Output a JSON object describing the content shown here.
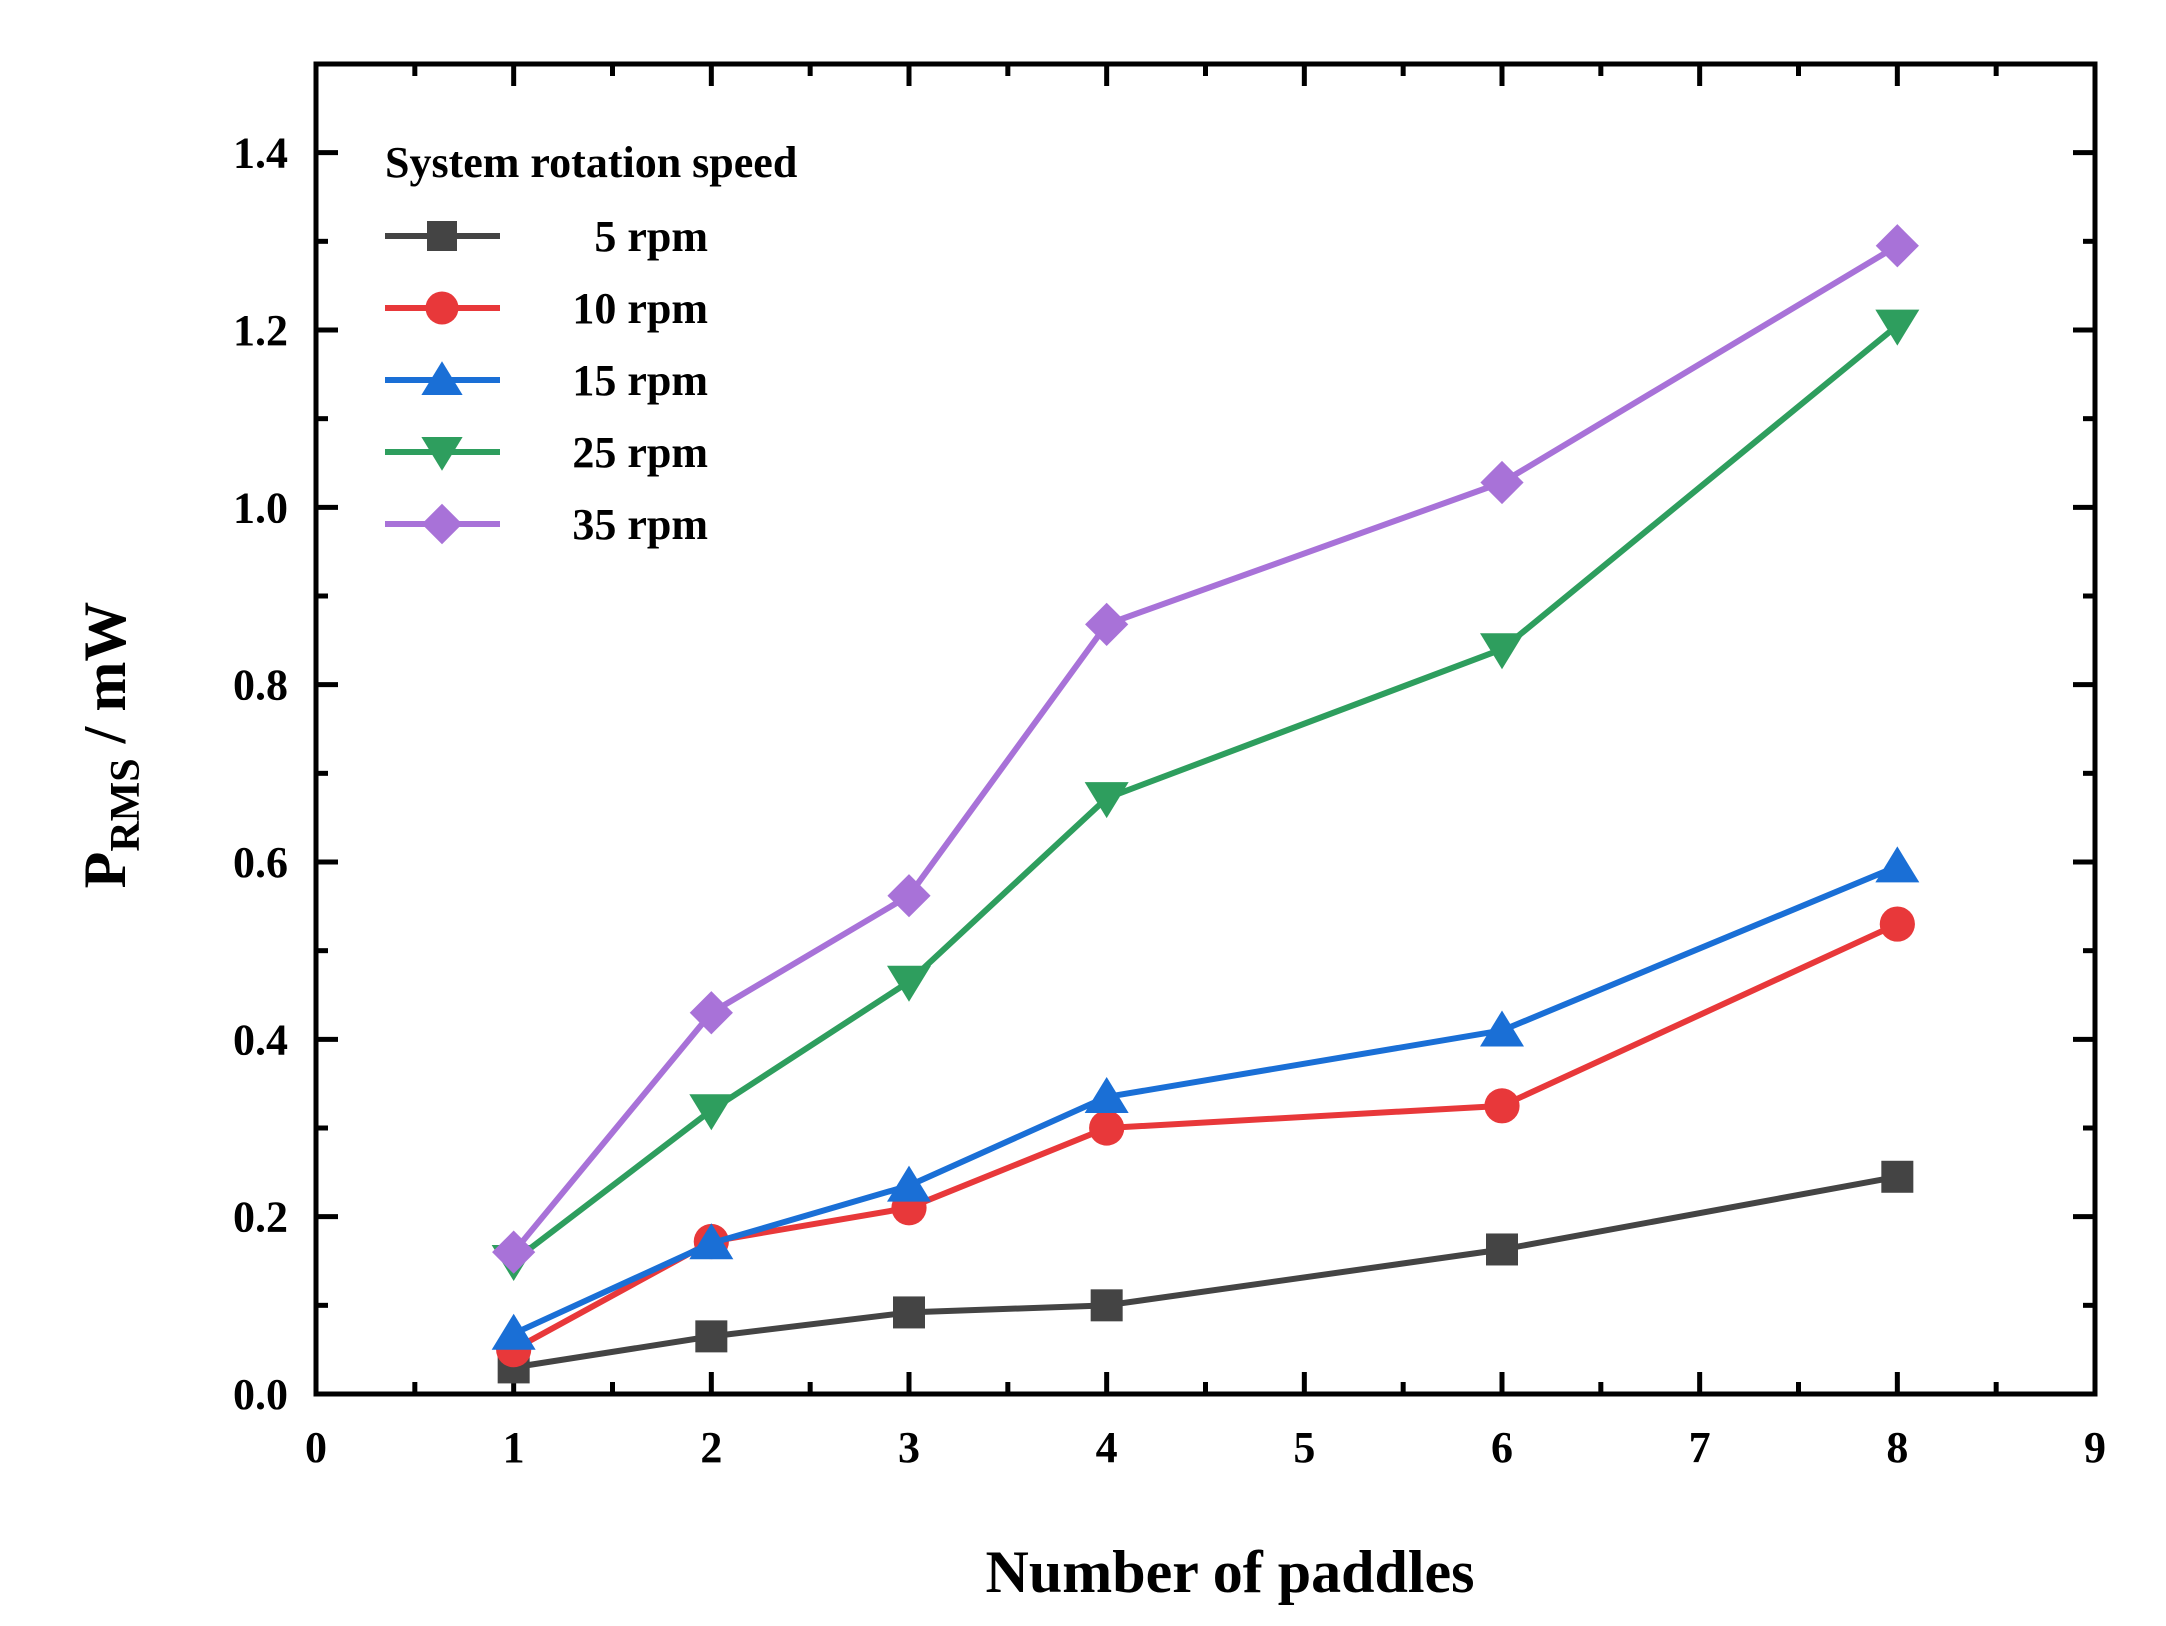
{
  "chart_data": {
    "type": "line",
    "title": "",
    "xlabel": "Number of paddles",
    "ylabel_main": "P",
    "ylabel_sub": "RMS",
    "ylabel_unit": " / mW",
    "xlim": [
      0,
      9
    ],
    "ylim": [
      0,
      1.5
    ],
    "xticks": [
      0,
      1,
      2,
      3,
      4,
      5,
      6,
      7,
      8,
      9
    ],
    "yticks": [
      0.0,
      0.2,
      0.4,
      0.6,
      0.8,
      1.0,
      1.2,
      1.4
    ],
    "xtick_labels": [
      "0",
      "1",
      "2",
      "3",
      "4",
      "5",
      "6",
      "7",
      "8",
      "9"
    ],
    "ytick_labels": [
      "0.0",
      "0.2",
      "0.4",
      "0.6",
      "0.8",
      "1.0",
      "1.2",
      "1.4"
    ],
    "grid": false,
    "legend": {
      "title": "System rotation speed",
      "position": "top-left"
    },
    "x": [
      1,
      2,
      3,
      4,
      6,
      8
    ],
    "series": [
      {
        "name": "5 rpm",
        "color": "#444444",
        "marker": "square",
        "values": [
          0.03,
          0.065,
          0.092,
          0.1,
          0.163,
          0.245
        ]
      },
      {
        "name": "10 rpm",
        "color": "#e8383a",
        "marker": "circle",
        "values": [
          0.05,
          0.172,
          0.21,
          0.3,
          0.325,
          0.53
        ]
      },
      {
        "name": "15 rpm",
        "color": "#1a6fd6",
        "marker": "triangle-up",
        "values": [
          0.068,
          0.17,
          0.235,
          0.335,
          0.41,
          0.595
        ]
      },
      {
        "name": "25 rpm",
        "color": "#2e9e5e",
        "marker": "triangle-down",
        "values": [
          0.15,
          0.32,
          0.465,
          0.672,
          0.84,
          1.205
        ]
      },
      {
        "name": "35 rpm",
        "color": "#a872d8",
        "marker": "diamond",
        "values": [
          0.16,
          0.43,
          0.562,
          0.868,
          1.028,
          1.295
        ]
      }
    ]
  }
}
